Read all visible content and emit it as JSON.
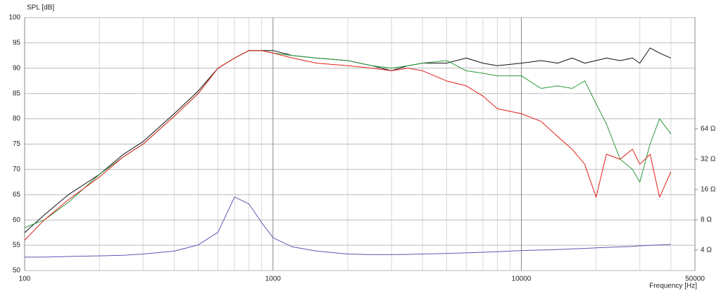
{
  "chart_data": {
    "type": "line",
    "y_label": "SPL [dB]",
    "x_label": "Frequency [Hz]",
    "xscale": "log",
    "y2scale": "log",
    "grid": true,
    "xlim": [
      100,
      50000
    ],
    "xticks": [
      100,
      1000,
      10000,
      50000
    ],
    "ylim": [
      50,
      100
    ],
    "yticks": [
      50,
      55,
      60,
      65,
      70,
      75,
      80,
      85,
      90,
      95,
      100
    ],
    "y2lim": [
      2.5,
      817
    ],
    "y2ticks": [
      {
        "value": 4,
        "label": "4 Ω"
      },
      {
        "value": 8,
        "label": "8 Ω"
      },
      {
        "value": 16,
        "label": "16 Ω"
      },
      {
        "value": 32,
        "label": "32 Ω"
      },
      {
        "value": 64,
        "label": "64 Ω"
      }
    ],
    "x": [
      100,
      120,
      150,
      200,
      250,
      300,
      400,
      500,
      600,
      700,
      800,
      900,
      1000,
      1200,
      1500,
      2000,
      2500,
      3000,
      3500,
      4000,
      5000,
      6000,
      7000,
      8000,
      10000,
      12000,
      14000,
      16000,
      18000,
      20000,
      22000,
      25000,
      28000,
      30000,
      33000,
      36000,
      40000
    ],
    "series": [
      {
        "color": "#111111",
        "values": [
          57.5,
          61,
          65,
          69,
          73,
          75.5,
          81,
          85.5,
          90,
          92,
          93.5,
          93.5,
          93.5,
          92.5,
          92,
          91.5,
          90.5,
          89.5,
          90.5,
          91,
          91,
          92,
          91,
          90.5,
          91,
          91.5,
          91,
          92,
          91,
          91.5,
          92,
          91.5,
          92,
          91,
          94,
          93,
          92
        ]
      },
      {
        "color": "#2a9a3a",
        "values": [
          58.5,
          60,
          63.5,
          69,
          72.5,
          75,
          80.5,
          85,
          90,
          92,
          93.5,
          93.5,
          93,
          92.5,
          92,
          91.5,
          90.5,
          90,
          90.5,
          91,
          91.5,
          89.5,
          89,
          88.5,
          88.5,
          86,
          86.5,
          86,
          87.5,
          83,
          79,
          72,
          70,
          67.5,
          75,
          80,
          77
        ]
      },
      {
        "color": "#e0201a",
        "values": [
          56,
          60,
          64,
          68.5,
          72.5,
          75,
          80.5,
          85,
          90,
          92,
          93.5,
          93.5,
          93,
          92,
          91,
          90.5,
          90,
          89.5,
          90,
          89.5,
          87.5,
          86.5,
          84.5,
          82,
          81,
          79.5,
          76.5,
          74,
          71,
          64.5,
          73,
          72,
          74,
          71,
          73,
          64.5,
          69.5
        ]
      },
      {
        "color": "#5a5ab4",
        "axis": "y2",
        "values": [
          3.4,
          3.4,
          3.45,
          3.5,
          3.55,
          3.65,
          3.9,
          4.5,
          6.0,
          13.5,
          11.5,
          7.5,
          5.3,
          4.3,
          3.9,
          3.65,
          3.6,
          3.6,
          3.62,
          3.65,
          3.7,
          3.75,
          3.8,
          3.85,
          3.95,
          4.0,
          4.05,
          4.1,
          4.15,
          4.2,
          4.25,
          4.3,
          4.35,
          4.4,
          4.45,
          4.5,
          4.55
        ]
      }
    ]
  }
}
